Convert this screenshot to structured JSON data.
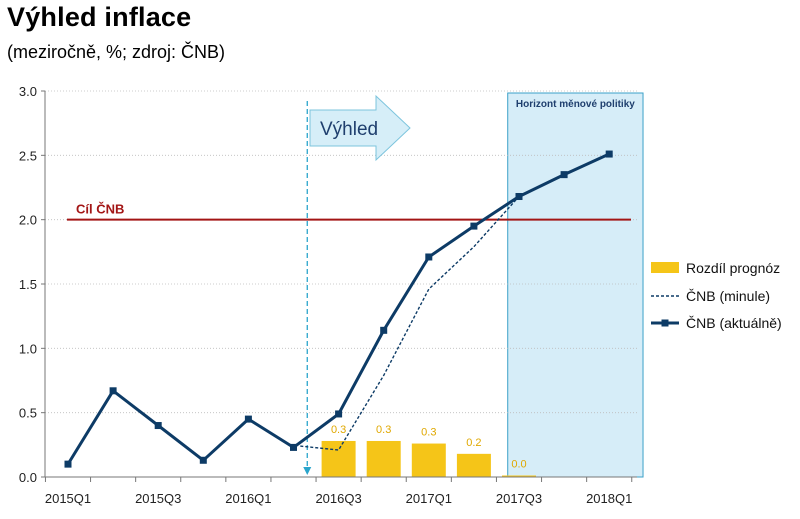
{
  "title": "Výhled inflace",
  "subtitle": "(meziročně, %; zdroj: ČNB)",
  "chart_data": {
    "type": "line",
    "ylim": [
      0,
      3
    ],
    "yticks": [
      "0.0",
      "0.5",
      "1.0",
      "1.5",
      "2.0",
      "2.5",
      "3.0"
    ],
    "ytick_values": [
      0,
      0.5,
      1.0,
      1.5,
      2.0,
      2.5,
      3.0
    ],
    "x_count": 13,
    "xtick_labels": [
      {
        "i": 0,
        "text": "2015Q1"
      },
      {
        "i": 2,
        "text": "2015Q3"
      },
      {
        "i": 4,
        "text": "2016Q1"
      },
      {
        "i": 6,
        "text": "2016Q3"
      },
      {
        "i": 8,
        "text": "2017Q1"
      },
      {
        "i": 10,
        "text": "2017Q3"
      },
      {
        "i": 12,
        "text": "2018Q1"
      }
    ],
    "series": [
      {
        "name": "Rozdíl prognóz",
        "kind": "bar",
        "color": "#f5c518",
        "points": [
          [
            6,
            0.28
          ],
          [
            7,
            0.28
          ],
          [
            8,
            0.26
          ],
          [
            9,
            0.18
          ],
          [
            10,
            0.01
          ]
        ],
        "labels": [
          "0.3",
          "0.3",
          "0.3",
          "0.2",
          "0.0"
        ]
      },
      {
        "name": "ČNB (minule)",
        "kind": "dashed",
        "color": "#0d3b66",
        "points": [
          [
            5.15,
            0.24
          ],
          [
            6,
            0.21
          ],
          [
            7,
            0.79
          ],
          [
            8,
            1.46
          ],
          [
            9,
            1.79
          ],
          [
            10,
            2.18
          ]
        ]
      },
      {
        "name": "ČNB (aktuálně)",
        "kind": "solid",
        "color": "#0d3b66",
        "points": [
          [
            0,
            0.1
          ],
          [
            1,
            0.67
          ],
          [
            2,
            0.4
          ],
          [
            3,
            0.13
          ],
          [
            4,
            0.45
          ],
          [
            5,
            0.23
          ],
          [
            6,
            0.49
          ],
          [
            7,
            1.14
          ],
          [
            8,
            1.71
          ],
          [
            9,
            1.95
          ],
          [
            10,
            2.18
          ],
          [
            11,
            2.35
          ],
          [
            12,
            2.51
          ]
        ]
      }
    ],
    "target": {
      "label": "Cíl ČNB",
      "value": 2.0,
      "color": "#a31515"
    },
    "outlook": {
      "label": "Výhled",
      "x": 5.15
    },
    "horizon": {
      "label": "Horizont měnové politiky",
      "from": 9.75,
      "to": 12.75
    },
    "legend_position": "right"
  }
}
